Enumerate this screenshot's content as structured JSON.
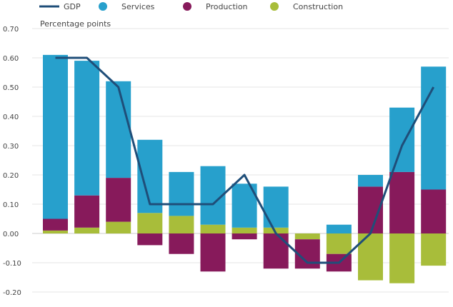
{
  "chart_data": {
    "type": "bar",
    "subtype": "stacked bar with line overlay",
    "ylabel": "Percentage points",
    "ylim": [
      -0.2,
      0.7
    ],
    "yticks": [
      "0.70",
      "0.60",
      "0.50",
      "0.40",
      "0.30",
      "0.20",
      "0.10",
      "0.00",
      "-0.10",
      "-0.20"
    ],
    "ytick_values": [
      0.7,
      0.6,
      0.5,
      0.4,
      0.3,
      0.2,
      0.1,
      0.0,
      -0.1,
      -0.2
    ],
    "grid": true,
    "legend_position": "top",
    "series": [
      {
        "name": "GDP",
        "kind": "line",
        "color": "#1f4e79",
        "values": [
          0.6,
          0.6,
          0.5,
          0.1,
          0.1,
          0.1,
          0.2,
          0.0,
          -0.1,
          -0.1,
          0.0,
          0.3,
          0.5
        ]
      },
      {
        "name": "Services",
        "kind": "bar",
        "color": "#27a0cc",
        "values": [
          0.56,
          0.46,
          0.33,
          0.25,
          0.15,
          0.2,
          0.15,
          0.14,
          0.0,
          0.03,
          0.04,
          0.22,
          0.42
        ]
      },
      {
        "name": "Production",
        "kind": "bar",
        "color": "#871a5b",
        "values": [
          0.04,
          0.11,
          0.15,
          -0.04,
          -0.07,
          -0.13,
          -0.02,
          -0.12,
          -0.1,
          -0.06,
          0.16,
          0.21,
          0.15
        ]
      },
      {
        "name": "Construction",
        "kind": "bar",
        "color": "#a8bd3a",
        "values": [
          0.01,
          0.02,
          0.04,
          0.07,
          0.06,
          0.03,
          0.02,
          0.02,
          -0.02,
          -0.07,
          -0.16,
          -0.17,
          -0.11
        ]
      }
    ]
  }
}
